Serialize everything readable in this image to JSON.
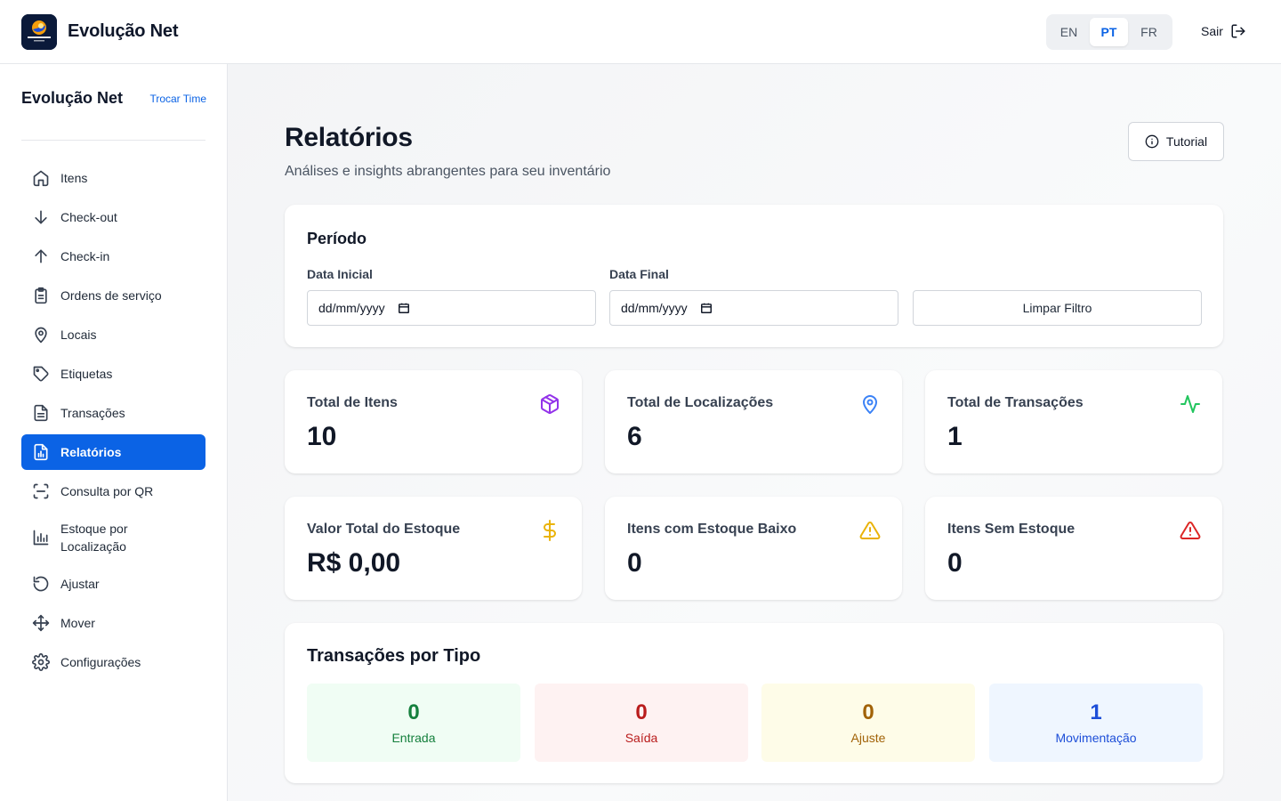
{
  "app": {
    "brand": "Evolução Net",
    "logo_text": "Evolução Net"
  },
  "header": {
    "languages": [
      {
        "code": "EN",
        "active": false
      },
      {
        "code": "PT",
        "active": true
      },
      {
        "code": "FR",
        "active": false
      }
    ],
    "logout_label": "Sair"
  },
  "sidebar": {
    "team_name": "Evolução Net",
    "switch_team_label": "Trocar Time",
    "items": [
      {
        "label": "Itens",
        "icon": "home-icon"
      },
      {
        "label": "Check-out",
        "icon": "arrow-down-icon"
      },
      {
        "label": "Check-in",
        "icon": "arrow-up-icon"
      },
      {
        "label": "Ordens de serviço",
        "icon": "clipboard-icon"
      },
      {
        "label": "Locais",
        "icon": "map-pin-icon"
      },
      {
        "label": "Etiquetas",
        "icon": "tag-icon"
      },
      {
        "label": "Transações",
        "icon": "file-text-icon"
      },
      {
        "label": "Relatórios",
        "icon": "report-icon",
        "active": true
      },
      {
        "label": "Consulta por QR",
        "icon": "scan-icon"
      },
      {
        "label": "Estoque por Localização",
        "icon": "bar-chart-icon"
      },
      {
        "label": "Ajustar",
        "icon": "rotate-icon"
      },
      {
        "label": "Mover",
        "icon": "move-icon"
      },
      {
        "label": "Configurações",
        "icon": "settings-icon"
      }
    ]
  },
  "main": {
    "title": "Relatórios",
    "subtitle": "Análises e insights abrangentes para seu inventário",
    "tutorial_label": "Tutorial",
    "period": {
      "title": "Período",
      "start_label": "Data Inicial",
      "start_value": "dd/mm/yyyy",
      "end_label": "Data Final",
      "end_value": "dd/mm/yyyy",
      "clear_label": "Limpar Filtro"
    },
    "stats": [
      {
        "label": "Total de Itens",
        "value": "10",
        "icon": "box-icon",
        "color": "#9333ea"
      },
      {
        "label": "Total de Localizações",
        "value": "6",
        "icon": "map-pin-icon",
        "color": "#3b82f6"
      },
      {
        "label": "Total de Transações",
        "value": "1",
        "icon": "activity-icon",
        "color": "#22c55e"
      },
      {
        "label": "Valor Total do Estoque",
        "value": "R$ 0,00",
        "icon": "dollar-icon",
        "color": "#eab308"
      },
      {
        "label": "Itens com Estoque Baixo",
        "value": "0",
        "icon": "warning-icon",
        "color": "#eab308"
      },
      {
        "label": "Itens Sem Estoque",
        "value": "0",
        "icon": "alert-triangle-icon",
        "color": "#dc2626"
      }
    ],
    "transactions_by_type": {
      "title": "Transações por Tipo",
      "types": [
        {
          "value": "0",
          "label": "Entrada",
          "bg": "#f0fdf4",
          "color": "#15803d"
        },
        {
          "value": "0",
          "label": "Saída",
          "bg": "#fef2f2",
          "color": "#b91c1c"
        },
        {
          "value": "0",
          "label": "Ajuste",
          "bg": "#fefce8",
          "color": "#a16207"
        },
        {
          "value": "1",
          "label": "Movimentação",
          "bg": "#eff6ff",
          "color": "#1d4ed8"
        }
      ]
    }
  }
}
